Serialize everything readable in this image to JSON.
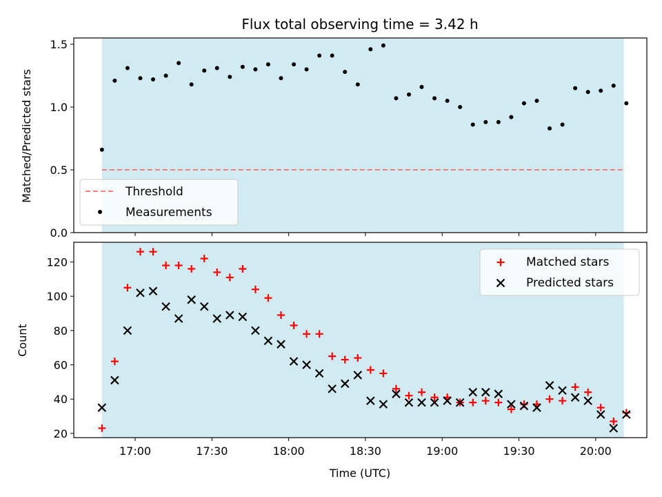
{
  "title": "Flux total observing time = 3.42 h",
  "colors": {
    "shade": "#add8e6",
    "threshold": "#f08080",
    "matched": "#ff0000",
    "predicted": "#000000",
    "measurement": "#000000"
  },
  "chart_data": [
    {
      "type": "scatter",
      "panel": "top",
      "ylabel": "Matched/Predicted stars",
      "ylim": [
        0,
        1.55
      ],
      "yticks": [
        "0.0",
        "0.5",
        "1.0",
        "1.5"
      ],
      "ytick_values": [
        0,
        0.5,
        1.0,
        1.5
      ],
      "xlim": [
        "16:36",
        "20:20"
      ],
      "shaded_span": [
        "16:47",
        "20:11"
      ],
      "legend_position": "lower-left",
      "threshold": {
        "name": "Threshold",
        "value": 0.5
      },
      "series": [
        {
          "name": "Measurements",
          "marker": "dot",
          "points": [
            [
              "16:47",
              0.66
            ],
            [
              "16:52",
              1.21
            ],
            [
              "16:57",
              1.31
            ],
            [
              "17:02",
              1.23
            ],
            [
              "17:07",
              1.22
            ],
            [
              "17:12",
              1.25
            ],
            [
              "17:17",
              1.35
            ],
            [
              "17:22",
              1.18
            ],
            [
              "17:27",
              1.29
            ],
            [
              "17:32",
              1.31
            ],
            [
              "17:37",
              1.24
            ],
            [
              "17:42",
              1.32
            ],
            [
              "17:47",
              1.3
            ],
            [
              "17:52",
              1.34
            ],
            [
              "17:57",
              1.23
            ],
            [
              "18:02",
              1.34
            ],
            [
              "18:07",
              1.3
            ],
            [
              "18:12",
              1.41
            ],
            [
              "18:17",
              1.41
            ],
            [
              "18:22",
              1.28
            ],
            [
              "18:27",
              1.18
            ],
            [
              "18:32",
              1.46
            ],
            [
              "18:37",
              1.49
            ],
            [
              "18:42",
              1.07
            ],
            [
              "18:47",
              1.1
            ],
            [
              "18:52",
              1.16
            ],
            [
              "18:57",
              1.07
            ],
            [
              "19:02",
              1.05
            ],
            [
              "19:07",
              1.0
            ],
            [
              "19:12",
              0.86
            ],
            [
              "19:17",
              0.88
            ],
            [
              "19:22",
              0.88
            ],
            [
              "19:27",
              0.92
            ],
            [
              "19:32",
              1.03
            ],
            [
              "19:37",
              1.05
            ],
            [
              "19:42",
              0.83
            ],
            [
              "19:47",
              0.86
            ],
            [
              "19:52",
              1.15
            ],
            [
              "19:57",
              1.12
            ],
            [
              "20:02",
              1.13
            ],
            [
              "20:07",
              1.17
            ],
            [
              "20:12",
              1.03
            ]
          ]
        }
      ]
    },
    {
      "type": "scatter",
      "panel": "bottom",
      "xlabel": "Time (UTC)",
      "ylabel": "Count",
      "ylim": [
        17.5,
        131.5
      ],
      "yticks": [
        "20",
        "40",
        "60",
        "80",
        "100",
        "120"
      ],
      "ytick_values": [
        20,
        40,
        60,
        80,
        100,
        120
      ],
      "xlim": [
        "16:36",
        "20:20"
      ],
      "xticks": [
        "17:00",
        "17:30",
        "18:00",
        "18:30",
        "19:00",
        "19:30",
        "20:00"
      ],
      "xtick_values": [
        "17:00",
        "17:30",
        "18:00",
        "18:30",
        "19:00",
        "19:30",
        "20:00"
      ],
      "shaded_span": [
        "16:47",
        "20:11"
      ],
      "legend_position": "upper-right",
      "series": [
        {
          "name": "Matched stars",
          "marker": "plus",
          "points": [
            [
              "16:47",
              23
            ],
            [
              "16:52",
              62
            ],
            [
              "16:57",
              105
            ],
            [
              "17:02",
              126
            ],
            [
              "17:07",
              126
            ],
            [
              "17:12",
              118
            ],
            [
              "17:17",
              118
            ],
            [
              "17:22",
              116
            ],
            [
              "17:27",
              122
            ],
            [
              "17:32",
              114
            ],
            [
              "17:37",
              111
            ],
            [
              "17:42",
              116
            ],
            [
              "17:47",
              104
            ],
            [
              "17:52",
              99
            ],
            [
              "17:57",
              89
            ],
            [
              "18:02",
              83
            ],
            [
              "18:07",
              78
            ],
            [
              "18:12",
              78
            ],
            [
              "18:17",
              65
            ],
            [
              "18:22",
              63
            ],
            [
              "18:27",
              64
            ],
            [
              "18:32",
              57
            ],
            [
              "18:37",
              55
            ],
            [
              "18:42",
              46
            ],
            [
              "18:47",
              42
            ],
            [
              "18:52",
              44
            ],
            [
              "18:57",
              41
            ],
            [
              "19:02",
              41
            ],
            [
              "19:07",
              38
            ],
            [
              "19:12",
              38
            ],
            [
              "19:17",
              39
            ],
            [
              "19:22",
              38
            ],
            [
              "19:27",
              34
            ],
            [
              "19:32",
              37
            ],
            [
              "19:37",
              37
            ],
            [
              "19:42",
              40
            ],
            [
              "19:47",
              39
            ],
            [
              "19:52",
              47
            ],
            [
              "19:57",
              44
            ],
            [
              "20:02",
              35
            ],
            [
              "20:07",
              27
            ],
            [
              "20:12",
              32
            ]
          ]
        },
        {
          "name": "Predicted stars",
          "marker": "x",
          "points": [
            [
              "16:47",
              35
            ],
            [
              "16:52",
              51
            ],
            [
              "16:57",
              80
            ],
            [
              "17:02",
              102
            ],
            [
              "17:07",
              103
            ],
            [
              "17:12",
              94
            ],
            [
              "17:17",
              87
            ],
            [
              "17:22",
              98
            ],
            [
              "17:27",
              94
            ],
            [
              "17:32",
              87
            ],
            [
              "17:37",
              89
            ],
            [
              "17:42",
              88
            ],
            [
              "17:47",
              80
            ],
            [
              "17:52",
              74
            ],
            [
              "17:57",
              72
            ],
            [
              "18:02",
              62
            ],
            [
              "18:07",
              60
            ],
            [
              "18:12",
              55
            ],
            [
              "18:17",
              46
            ],
            [
              "18:22",
              49
            ],
            [
              "18:27",
              54
            ],
            [
              "18:32",
              39
            ],
            [
              "18:37",
              37
            ],
            [
              "18:42",
              43
            ],
            [
              "18:47",
              38
            ],
            [
              "18:52",
              38
            ],
            [
              "18:57",
              38
            ],
            [
              "19:02",
              39
            ],
            [
              "19:07",
              38
            ],
            [
              "19:12",
              44
            ],
            [
              "19:17",
              44
            ],
            [
              "19:22",
              43
            ],
            [
              "19:27",
              37
            ],
            [
              "19:32",
              36
            ],
            [
              "19:37",
              35
            ],
            [
              "19:42",
              48
            ],
            [
              "19:47",
              45
            ],
            [
              "19:52",
              41
            ],
            [
              "19:57",
              39
            ],
            [
              "20:02",
              31
            ],
            [
              "20:07",
              23
            ],
            [
              "20:12",
              31
            ]
          ]
        }
      ]
    }
  ]
}
